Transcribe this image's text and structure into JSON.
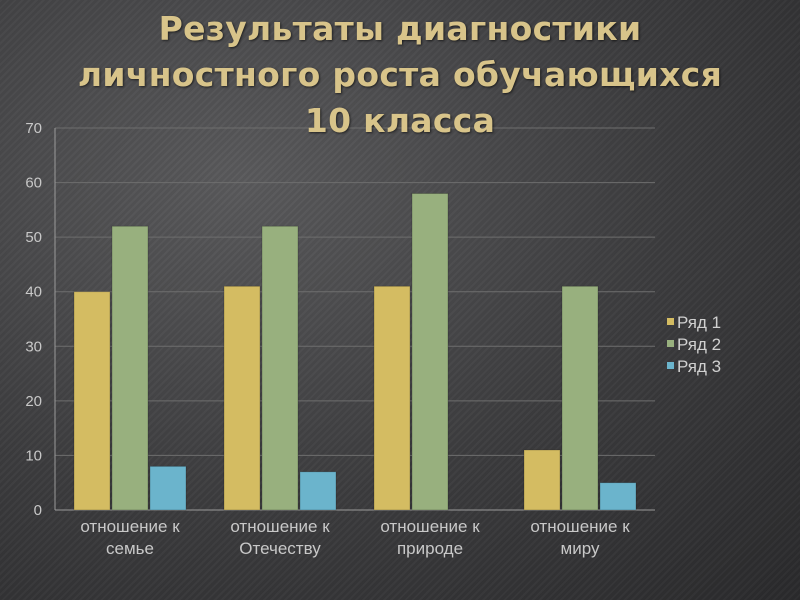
{
  "slide": {
    "title_lines": [
      "Результаты диагностики",
      "личностного роста обучающихся",
      "10 класса"
    ]
  },
  "chart_data": {
    "type": "bar",
    "title": "Результаты диагностики личностного роста обучающихся 10 класса",
    "categories": [
      [
        "отношение к",
        "семье"
      ],
      [
        "отношение к",
        "Отечеству"
      ],
      [
        "отношение к",
        "природе"
      ],
      [
        "отношение к",
        "миру"
      ]
    ],
    "series": [
      {
        "name": "Ряд 1",
        "color": "#d4bc62",
        "values": [
          40,
          41,
          41,
          11
        ]
      },
      {
        "name": "Ряд 2",
        "color": "#98b07e",
        "values": [
          52,
          52,
          58,
          41
        ]
      },
      {
        "name": "Ряд 3",
        "color": "#6bb4cc",
        "values": [
          8,
          7,
          0,
          5
        ]
      }
    ],
    "ylim": [
      0,
      70
    ],
    "yticks": [
      0,
      10,
      20,
      30,
      40,
      50,
      60,
      70
    ],
    "grid": true,
    "legend": "right"
  }
}
